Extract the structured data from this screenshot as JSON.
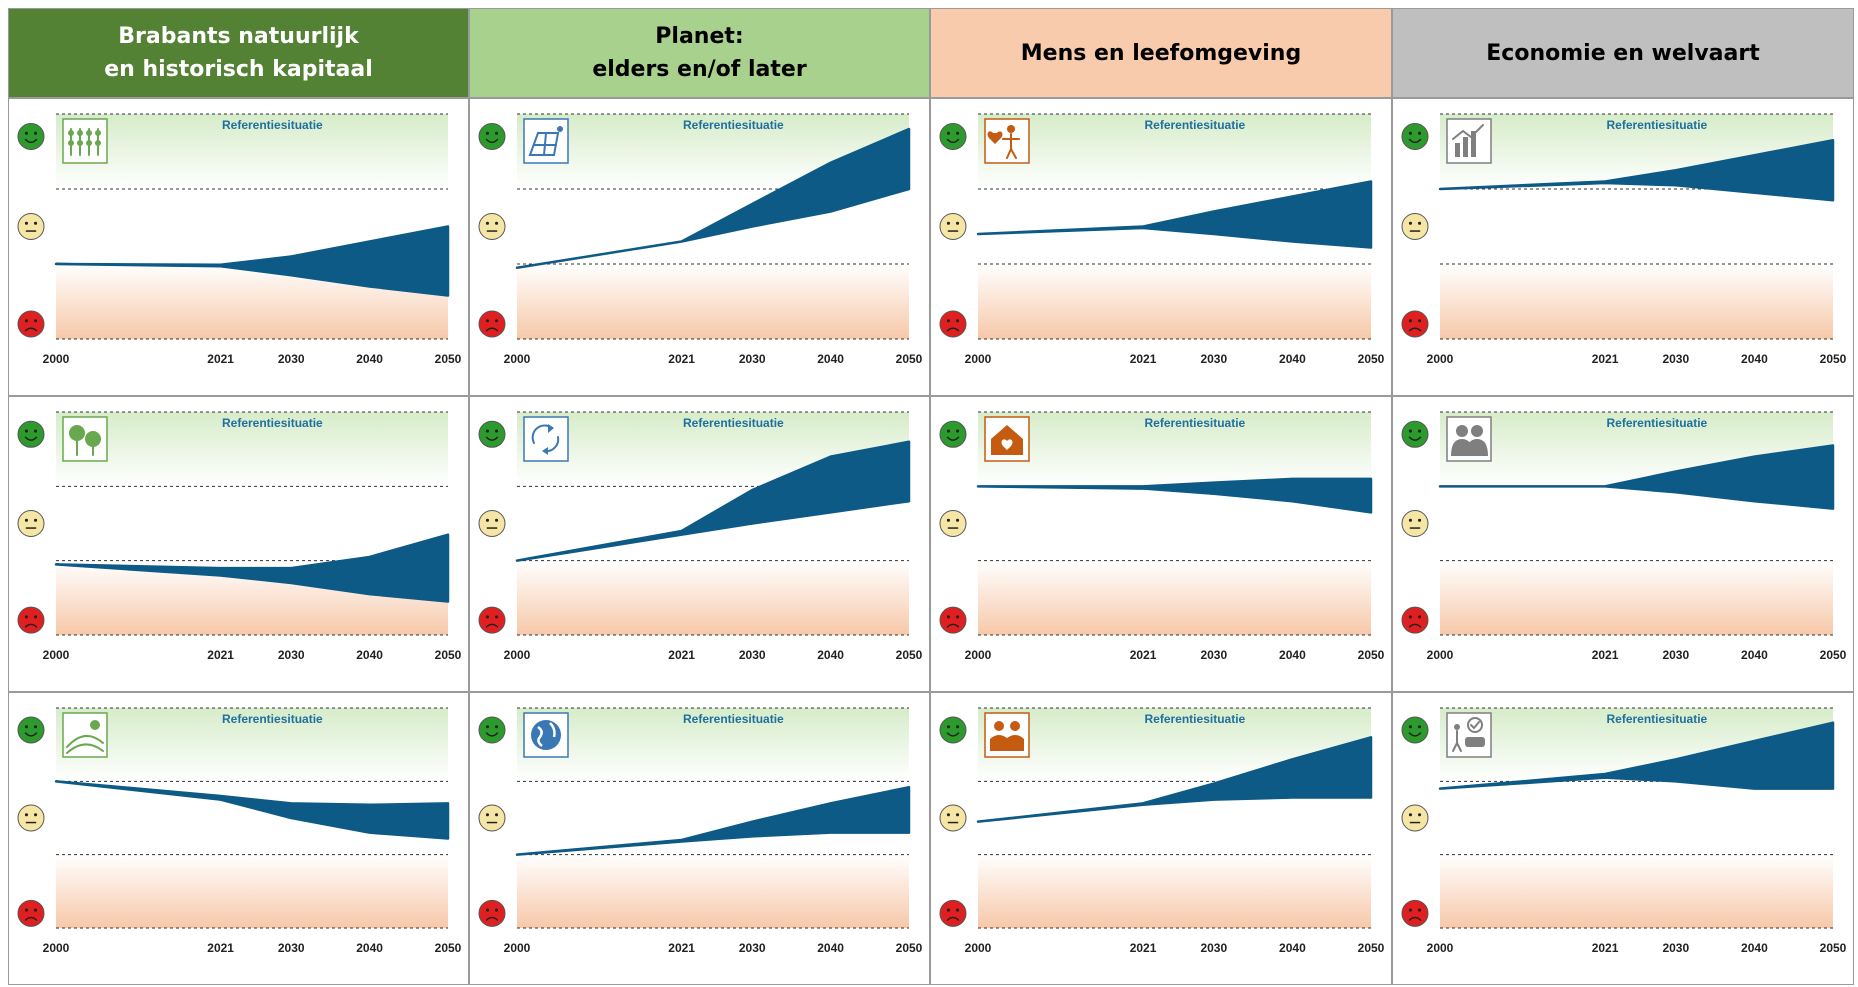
{
  "colors": {
    "band_fill": "#0c5a85",
    "good_top": "#d6ecc9",
    "warm_bottom": "#f7c8a9",
    "ref_label": "#1f6f9e",
    "smiley_good": "#2c9a2c",
    "smiley_neutral": "#f5e6a6",
    "smiley_bad": "#e02020"
  },
  "columns": [
    {
      "title": "Brabants natuurlijk\nen historisch kapitaal",
      "bg": "#548235",
      "fg": "#ffffff",
      "accent": "#6aa84f"
    },
    {
      "title": "Planet:\nelders en/of later",
      "bg": "#a9d18e",
      "fg": "#000000",
      "accent": "#3a78b5"
    },
    {
      "title": "Mens en leefomgeving",
      "bg": "#f8cbad",
      "fg": "#000000",
      "accent": "#c55a11"
    },
    {
      "title": "Economie en welvaart",
      "bg": "#bfbfbf",
      "fg": "#000000",
      "accent": "#7f7f7f"
    }
  ],
  "chart_data": [
    {
      "type": "area",
      "column": 0,
      "row": 0,
      "icon": "agriculture-icon",
      "annotation": "Referentiesituatie",
      "x_ticks": [
        "2000",
        "2021",
        "2030",
        "2040",
        "2050"
      ],
      "xlim": [
        2000,
        2050
      ],
      "ylim": [
        0,
        3
      ],
      "x": [
        2000,
        2021,
        2030,
        2040,
        2050
      ],
      "upper": [
        1.0,
        0.99,
        1.1,
        1.3,
        1.5
      ],
      "lower": [
        1.0,
        0.97,
        0.85,
        0.7,
        0.58
      ]
    },
    {
      "type": "area",
      "column": 0,
      "row": 1,
      "icon": "trees-icon",
      "annotation": "Referentiesituatie",
      "x_ticks": [
        "2000",
        "2021",
        "2030",
        "2040",
        "2050"
      ],
      "xlim": [
        2000,
        2050
      ],
      "ylim": [
        0,
        3
      ],
      "x": [
        2000,
        2021,
        2030,
        2040,
        2050
      ],
      "upper": [
        0.95,
        0.9,
        0.9,
        1.05,
        1.35
      ],
      "lower": [
        0.95,
        0.8,
        0.7,
        0.55,
        0.45
      ]
    },
    {
      "type": "area",
      "column": 0,
      "row": 2,
      "icon": "landscape-icon",
      "annotation": "Referentiesituatie",
      "x_ticks": [
        "2000",
        "2021",
        "2030",
        "2040",
        "2050"
      ],
      "xlim": [
        2000,
        2050
      ],
      "ylim": [
        0,
        3
      ],
      "x": [
        2000,
        2021,
        2030,
        2040,
        2050
      ],
      "upper": [
        2.0,
        1.8,
        1.7,
        1.68,
        1.7
      ],
      "lower": [
        2.0,
        1.75,
        1.5,
        1.3,
        1.22
      ]
    },
    {
      "type": "area",
      "column": 1,
      "row": 0,
      "icon": "solar-wind-icon",
      "annotation": "Referentiesituatie",
      "x_ticks": [
        "2000",
        "2021",
        "2030",
        "2040",
        "2050"
      ],
      "xlim": [
        2000,
        2050
      ],
      "ylim": [
        0,
        3
      ],
      "x": [
        2000,
        2021,
        2030,
        2040,
        2050
      ],
      "upper": [
        0.95,
        1.3,
        1.8,
        2.35,
        2.8
      ],
      "lower": [
        0.95,
        1.3,
        1.5,
        1.7,
        2.0
      ]
    },
    {
      "type": "area",
      "column": 1,
      "row": 1,
      "icon": "recycle-icon",
      "annotation": "Referentiesituatie",
      "x_ticks": [
        "2000",
        "2021",
        "2030",
        "2040",
        "2050"
      ],
      "xlim": [
        2000,
        2050
      ],
      "ylim": [
        0,
        3
      ],
      "x": [
        2000,
        2021,
        2030,
        2040,
        2050
      ],
      "upper": [
        1.0,
        1.4,
        1.95,
        2.4,
        2.6
      ],
      "lower": [
        1.0,
        1.35,
        1.5,
        1.65,
        1.8
      ]
    },
    {
      "type": "area",
      "column": 1,
      "row": 2,
      "icon": "globe-icon",
      "annotation": "Referentiesituatie",
      "x_ticks": [
        "2000",
        "2021",
        "2030",
        "2040",
        "2050"
      ],
      "xlim": [
        2000,
        2050
      ],
      "ylim": [
        0,
        3
      ],
      "x": [
        2000,
        2021,
        2030,
        2040,
        2050
      ],
      "upper": [
        1.0,
        1.2,
        1.45,
        1.7,
        1.92
      ],
      "lower": [
        1.0,
        1.18,
        1.25,
        1.3,
        1.3
      ]
    },
    {
      "type": "area",
      "column": 2,
      "row": 0,
      "icon": "person-heart-icon",
      "annotation": "Referentiesituatie",
      "x_ticks": [
        "2000",
        "2021",
        "2030",
        "2040",
        "2050"
      ],
      "xlim": [
        2000,
        2050
      ],
      "ylim": [
        0,
        3
      ],
      "x": [
        2000,
        2021,
        2030,
        2040,
        2050
      ],
      "upper": [
        1.4,
        1.5,
        1.7,
        1.9,
        2.1
      ],
      "lower": [
        1.4,
        1.48,
        1.4,
        1.3,
        1.22
      ]
    },
    {
      "type": "area",
      "column": 2,
      "row": 1,
      "icon": "home-heart-icon",
      "annotation": "Referentiesituatie",
      "x_ticks": [
        "2000",
        "2021",
        "2030",
        "2040",
        "2050"
      ],
      "xlim": [
        2000,
        2050
      ],
      "ylim": [
        0,
        3
      ],
      "x": [
        2000,
        2021,
        2030,
        2040,
        2050
      ],
      "upper": [
        2.0,
        2.0,
        2.05,
        2.1,
        2.1
      ],
      "lower": [
        2.0,
        1.97,
        1.9,
        1.8,
        1.65
      ]
    },
    {
      "type": "area",
      "column": 2,
      "row": 2,
      "icon": "family-icon",
      "annotation": "Referentiesituatie",
      "x_ticks": [
        "2000",
        "2021",
        "2030",
        "2040",
        "2050"
      ],
      "xlim": [
        2000,
        2050
      ],
      "ylim": [
        0,
        3
      ],
      "x": [
        2000,
        2021,
        2030,
        2040,
        2050
      ],
      "upper": [
        1.45,
        1.7,
        1.97,
        2.3,
        2.6
      ],
      "lower": [
        1.45,
        1.68,
        1.75,
        1.78,
        1.78
      ]
    },
    {
      "type": "area",
      "column": 3,
      "row": 0,
      "icon": "economy-chart-icon",
      "annotation": "Referentiesituatie",
      "x_ticks": [
        "2000",
        "2021",
        "2030",
        "2040",
        "2050"
      ],
      "xlim": [
        2000,
        2050
      ],
      "ylim": [
        0,
        3
      ],
      "x": [
        2000,
        2021,
        2030,
        2040,
        2050
      ],
      "upper": [
        2.0,
        2.1,
        2.25,
        2.45,
        2.65
      ],
      "lower": [
        2.0,
        2.08,
        2.05,
        1.95,
        1.85
      ]
    },
    {
      "type": "area",
      "column": 3,
      "row": 1,
      "icon": "people-icon",
      "annotation": "Referentiesituatie",
      "x_ticks": [
        "2000",
        "2021",
        "2030",
        "2040",
        "2050"
      ],
      "xlim": [
        2000,
        2050
      ],
      "ylim": [
        0,
        3
      ],
      "x": [
        2000,
        2021,
        2030,
        2040,
        2050
      ],
      "upper": [
        2.0,
        2.0,
        2.2,
        2.4,
        2.55
      ],
      "lower": [
        2.0,
        2.0,
        1.92,
        1.8,
        1.7
      ]
    },
    {
      "type": "area",
      "column": 3,
      "row": 2,
      "icon": "mobility-icon",
      "annotation": "Referentiesituatie",
      "x_ticks": [
        "2000",
        "2021",
        "2030",
        "2040",
        "2050"
      ],
      "xlim": [
        2000,
        2050
      ],
      "ylim": [
        0,
        3
      ],
      "x": [
        2000,
        2021,
        2030,
        2040,
        2050
      ],
      "upper": [
        1.9,
        2.1,
        2.3,
        2.55,
        2.8
      ],
      "lower": [
        1.9,
        2.05,
        2.0,
        1.9,
        1.9
      ]
    }
  ]
}
